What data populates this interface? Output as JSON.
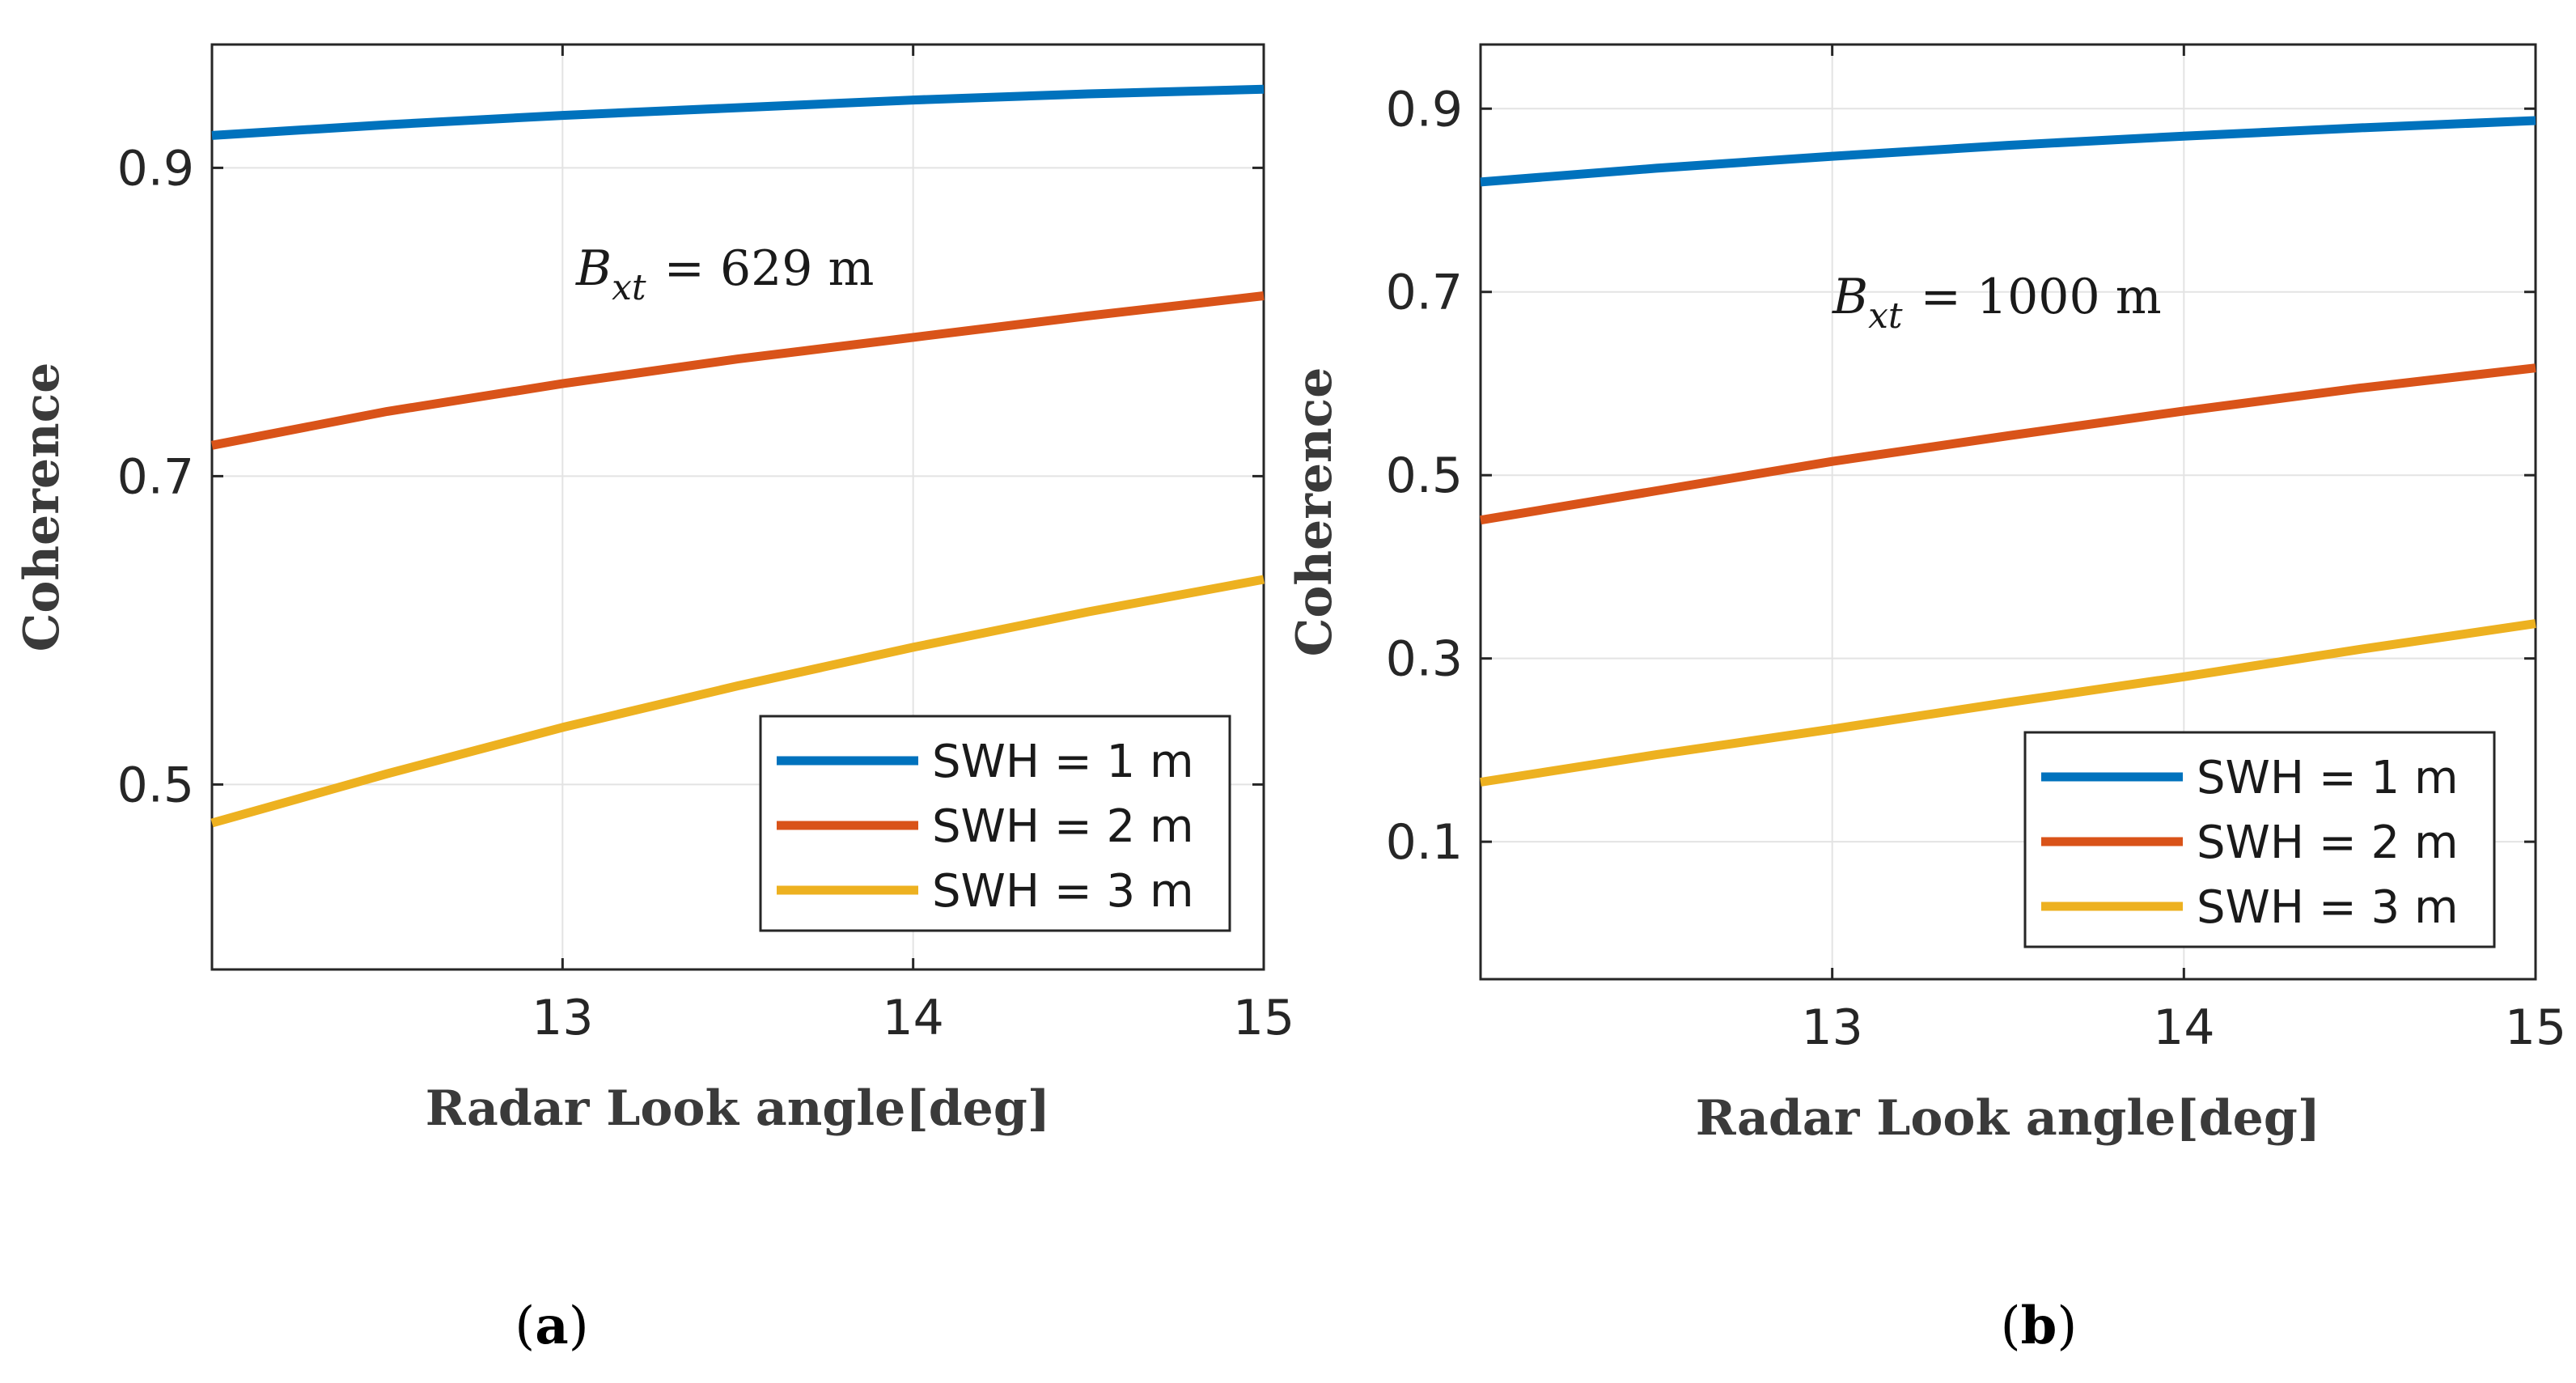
{
  "chart_data": [
    {
      "type": "line",
      "panel": "a",
      "caption_letter": "a",
      "ylabel": "Coherence",
      "xlabel": "Radar Look angle[deg]",
      "annotation": {
        "symbol": "B",
        "subscript": "xt",
        "rest": "= 629 m"
      },
      "xlim": [
        12,
        15
      ],
      "ylim": [
        0.38,
        0.98
      ],
      "xticks": [
        13,
        14,
        15
      ],
      "yticks": [
        0.5,
        0.7,
        0.9
      ],
      "xtick_labels": [
        "13",
        "14",
        "15"
      ],
      "ytick_labels": [
        "0.5",
        "0.7",
        "0.9"
      ],
      "grid": true,
      "legend_position": "lower-right",
      "series": [
        {
          "name": "SWH = 1 m",
          "color": "#0072BD",
          "x": [
            12,
            12.5,
            13,
            13.5,
            14,
            14.5,
            15
          ],
          "y": [
            0.921,
            0.928,
            0.934,
            0.939,
            0.944,
            0.948,
            0.951
          ]
        },
        {
          "name": "SWH = 2 m",
          "color": "#D95319",
          "x": [
            12,
            12.5,
            13,
            13.5,
            14,
            14.5,
            15
          ],
          "y": [
            0.72,
            0.742,
            0.76,
            0.776,
            0.79,
            0.804,
            0.817
          ]
        },
        {
          "name": "SWH = 3 m",
          "color": "#EDB120",
          "x": [
            12,
            12.5,
            13,
            13.5,
            14,
            14.5,
            15
          ],
          "y": [
            0.475,
            0.507,
            0.537,
            0.564,
            0.589,
            0.612,
            0.633
          ]
        }
      ]
    },
    {
      "type": "line",
      "panel": "b",
      "caption_letter": "b",
      "ylabel": "Coherence",
      "xlabel": "Radar Look angle[deg]",
      "annotation": {
        "symbol": "B",
        "subscript": "xt",
        "rest": "= 1000 m"
      },
      "xlim": [
        12,
        15
      ],
      "ylim": [
        -0.05,
        0.97
      ],
      "xticks": [
        13,
        14,
        15
      ],
      "yticks": [
        0.1,
        0.3,
        0.5,
        0.7,
        0.9
      ],
      "xtick_labels": [
        "13",
        "14",
        "15"
      ],
      "ytick_labels": [
        "0.1",
        "0.3",
        "0.5",
        "0.7",
        "0.9"
      ],
      "grid": true,
      "legend_position": "lower-right",
      "series": [
        {
          "name": "SWH = 1 m",
          "color": "#0072BD",
          "x": [
            12,
            12.5,
            13,
            13.5,
            14,
            14.5,
            15
          ],
          "y": [
            0.82,
            0.835,
            0.848,
            0.86,
            0.87,
            0.879,
            0.887
          ]
        },
        {
          "name": "SWH = 2 m",
          "color": "#D95319",
          "x": [
            12,
            12.5,
            13,
            13.5,
            14,
            14.5,
            15
          ],
          "y": [
            0.451,
            0.483,
            0.515,
            0.543,
            0.57,
            0.595,
            0.617
          ]
        },
        {
          "name": "SWH = 3 m",
          "color": "#EDB120",
          "x": [
            12,
            12.5,
            13,
            13.5,
            14,
            14.5,
            15
          ],
          "y": [
            0.165,
            0.195,
            0.223,
            0.252,
            0.28,
            0.31,
            0.338
          ]
        }
      ]
    }
  ]
}
